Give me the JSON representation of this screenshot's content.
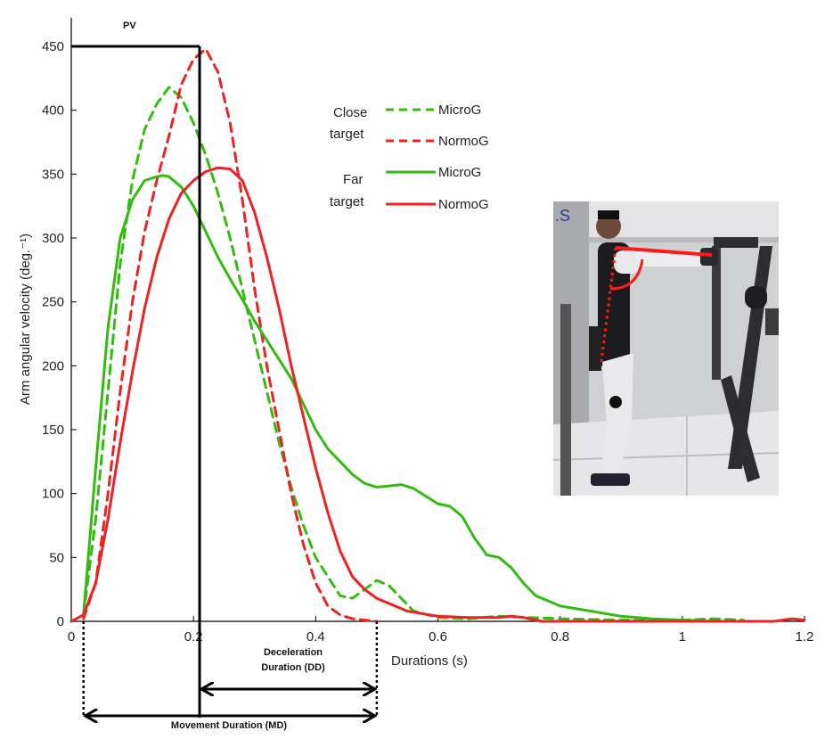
{
  "chart_data": {
    "type": "line",
    "xlabel": "Durations (s)",
    "ylabel": "Arm angular velocity (deg.⁻¹)",
    "xlim": [
      0,
      1.2
    ],
    "ylim": [
      0,
      450
    ],
    "xticks": [
      "0",
      "0.2",
      "0.4",
      "0.6",
      "0.8",
      "1",
      "1.2"
    ],
    "yticks": [
      "0",
      "50",
      "100",
      "150",
      "200",
      "250",
      "300",
      "350",
      "400",
      "450"
    ],
    "grid": false,
    "legend_position": "top-right",
    "legend": {
      "groups": [
        {
          "label_line1": "Close",
          "label_line2": "target"
        },
        {
          "label_line1": "Far",
          "label_line2": "target"
        }
      ]
    },
    "series": [
      {
        "name": "MicroG",
        "group": "Close target",
        "color": "#33bb11",
        "dash": true,
        "x": [
          0.02,
          0.04,
          0.06,
          0.08,
          0.1,
          0.12,
          0.14,
          0.16,
          0.18,
          0.2,
          0.22,
          0.24,
          0.26,
          0.28,
          0.3,
          0.32,
          0.34,
          0.36,
          0.38,
          0.4,
          0.42,
          0.44,
          0.46,
          0.48,
          0.5,
          0.52,
          0.54,
          0.56,
          0.6,
          0.65,
          0.7,
          0.75,
          0.8,
          0.9,
          1.0,
          1.05,
          1.1
        ],
        "y": [
          5,
          80,
          180,
          280,
          345,
          385,
          405,
          418,
          410,
          390,
          365,
          335,
          300,
          260,
          220,
          180,
          140,
          105,
          75,
          50,
          35,
          20,
          18,
          25,
          32,
          28,
          18,
          8,
          3,
          2,
          4,
          3,
          2,
          1,
          1,
          2,
          1
        ]
      },
      {
        "name": "NormoG",
        "group": "Close target",
        "color": "#ee2222",
        "dash": true,
        "x": [
          0.02,
          0.04,
          0.06,
          0.08,
          0.1,
          0.12,
          0.14,
          0.16,
          0.18,
          0.2,
          0.22,
          0.24,
          0.26,
          0.28,
          0.3,
          0.32,
          0.34,
          0.36,
          0.38,
          0.4,
          0.42,
          0.44,
          0.46,
          0.48,
          0.5
        ],
        "y": [
          2,
          30,
          100,
          180,
          250,
          305,
          345,
          380,
          420,
          440,
          448,
          430,
          390,
          330,
          260,
          200,
          150,
          100,
          60,
          30,
          12,
          5,
          2,
          1,
          0
        ]
      },
      {
        "name": "MicroG",
        "group": "Far target",
        "color": "#33bb11",
        "dash": false,
        "x": [
          0.02,
          0.04,
          0.06,
          0.08,
          0.1,
          0.12,
          0.14,
          0.15,
          0.16,
          0.18,
          0.2,
          0.22,
          0.24,
          0.26,
          0.28,
          0.3,
          0.32,
          0.34,
          0.36,
          0.38,
          0.4,
          0.42,
          0.44,
          0.46,
          0.48,
          0.5,
          0.52,
          0.54,
          0.56,
          0.58,
          0.6,
          0.62,
          0.64,
          0.66,
          0.68,
          0.7,
          0.72,
          0.74,
          0.76,
          0.8,
          0.85,
          0.9,
          0.95,
          1.0,
          1.05
        ],
        "y": [
          5,
          120,
          230,
          300,
          330,
          345,
          348,
          349,
          348,
          340,
          325,
          305,
          285,
          268,
          252,
          235,
          220,
          205,
          190,
          170,
          150,
          135,
          125,
          115,
          108,
          105,
          106,
          107,
          104,
          98,
          92,
          90,
          82,
          65,
          52,
          50,
          42,
          30,
          20,
          12,
          8,
          4,
          2,
          1,
          0
        ]
      },
      {
        "name": "NormoG",
        "group": "Far target",
        "color": "#ee2222",
        "dash": false,
        "x": [
          0.0,
          0.02,
          0.04,
          0.06,
          0.08,
          0.1,
          0.12,
          0.14,
          0.16,
          0.18,
          0.2,
          0.22,
          0.24,
          0.26,
          0.28,
          0.3,
          0.32,
          0.34,
          0.36,
          0.38,
          0.4,
          0.42,
          0.44,
          0.46,
          0.48,
          0.5,
          0.55,
          0.6,
          0.65,
          0.7,
          0.72,
          0.74,
          0.76,
          0.77,
          1.15,
          1.18,
          1.2
        ],
        "y": [
          0,
          5,
          30,
          80,
          140,
          195,
          245,
          285,
          315,
          335,
          345,
          352,
          355,
          354,
          345,
          320,
          285,
          245,
          200,
          160,
          120,
          85,
          55,
          35,
          25,
          18,
          8,
          4,
          3,
          3,
          4,
          3,
          1,
          0,
          0,
          2,
          1
        ]
      }
    ],
    "annotations": {
      "pv_label": "PV",
      "pv_value": 450,
      "pv_time": 0.21,
      "dd_line1": "Deceleration",
      "dd_line2": "Duration (DD)",
      "md_label": "Movement  Duration (MD)",
      "movement_start": 0.02,
      "movement_end": 0.5
    }
  }
}
